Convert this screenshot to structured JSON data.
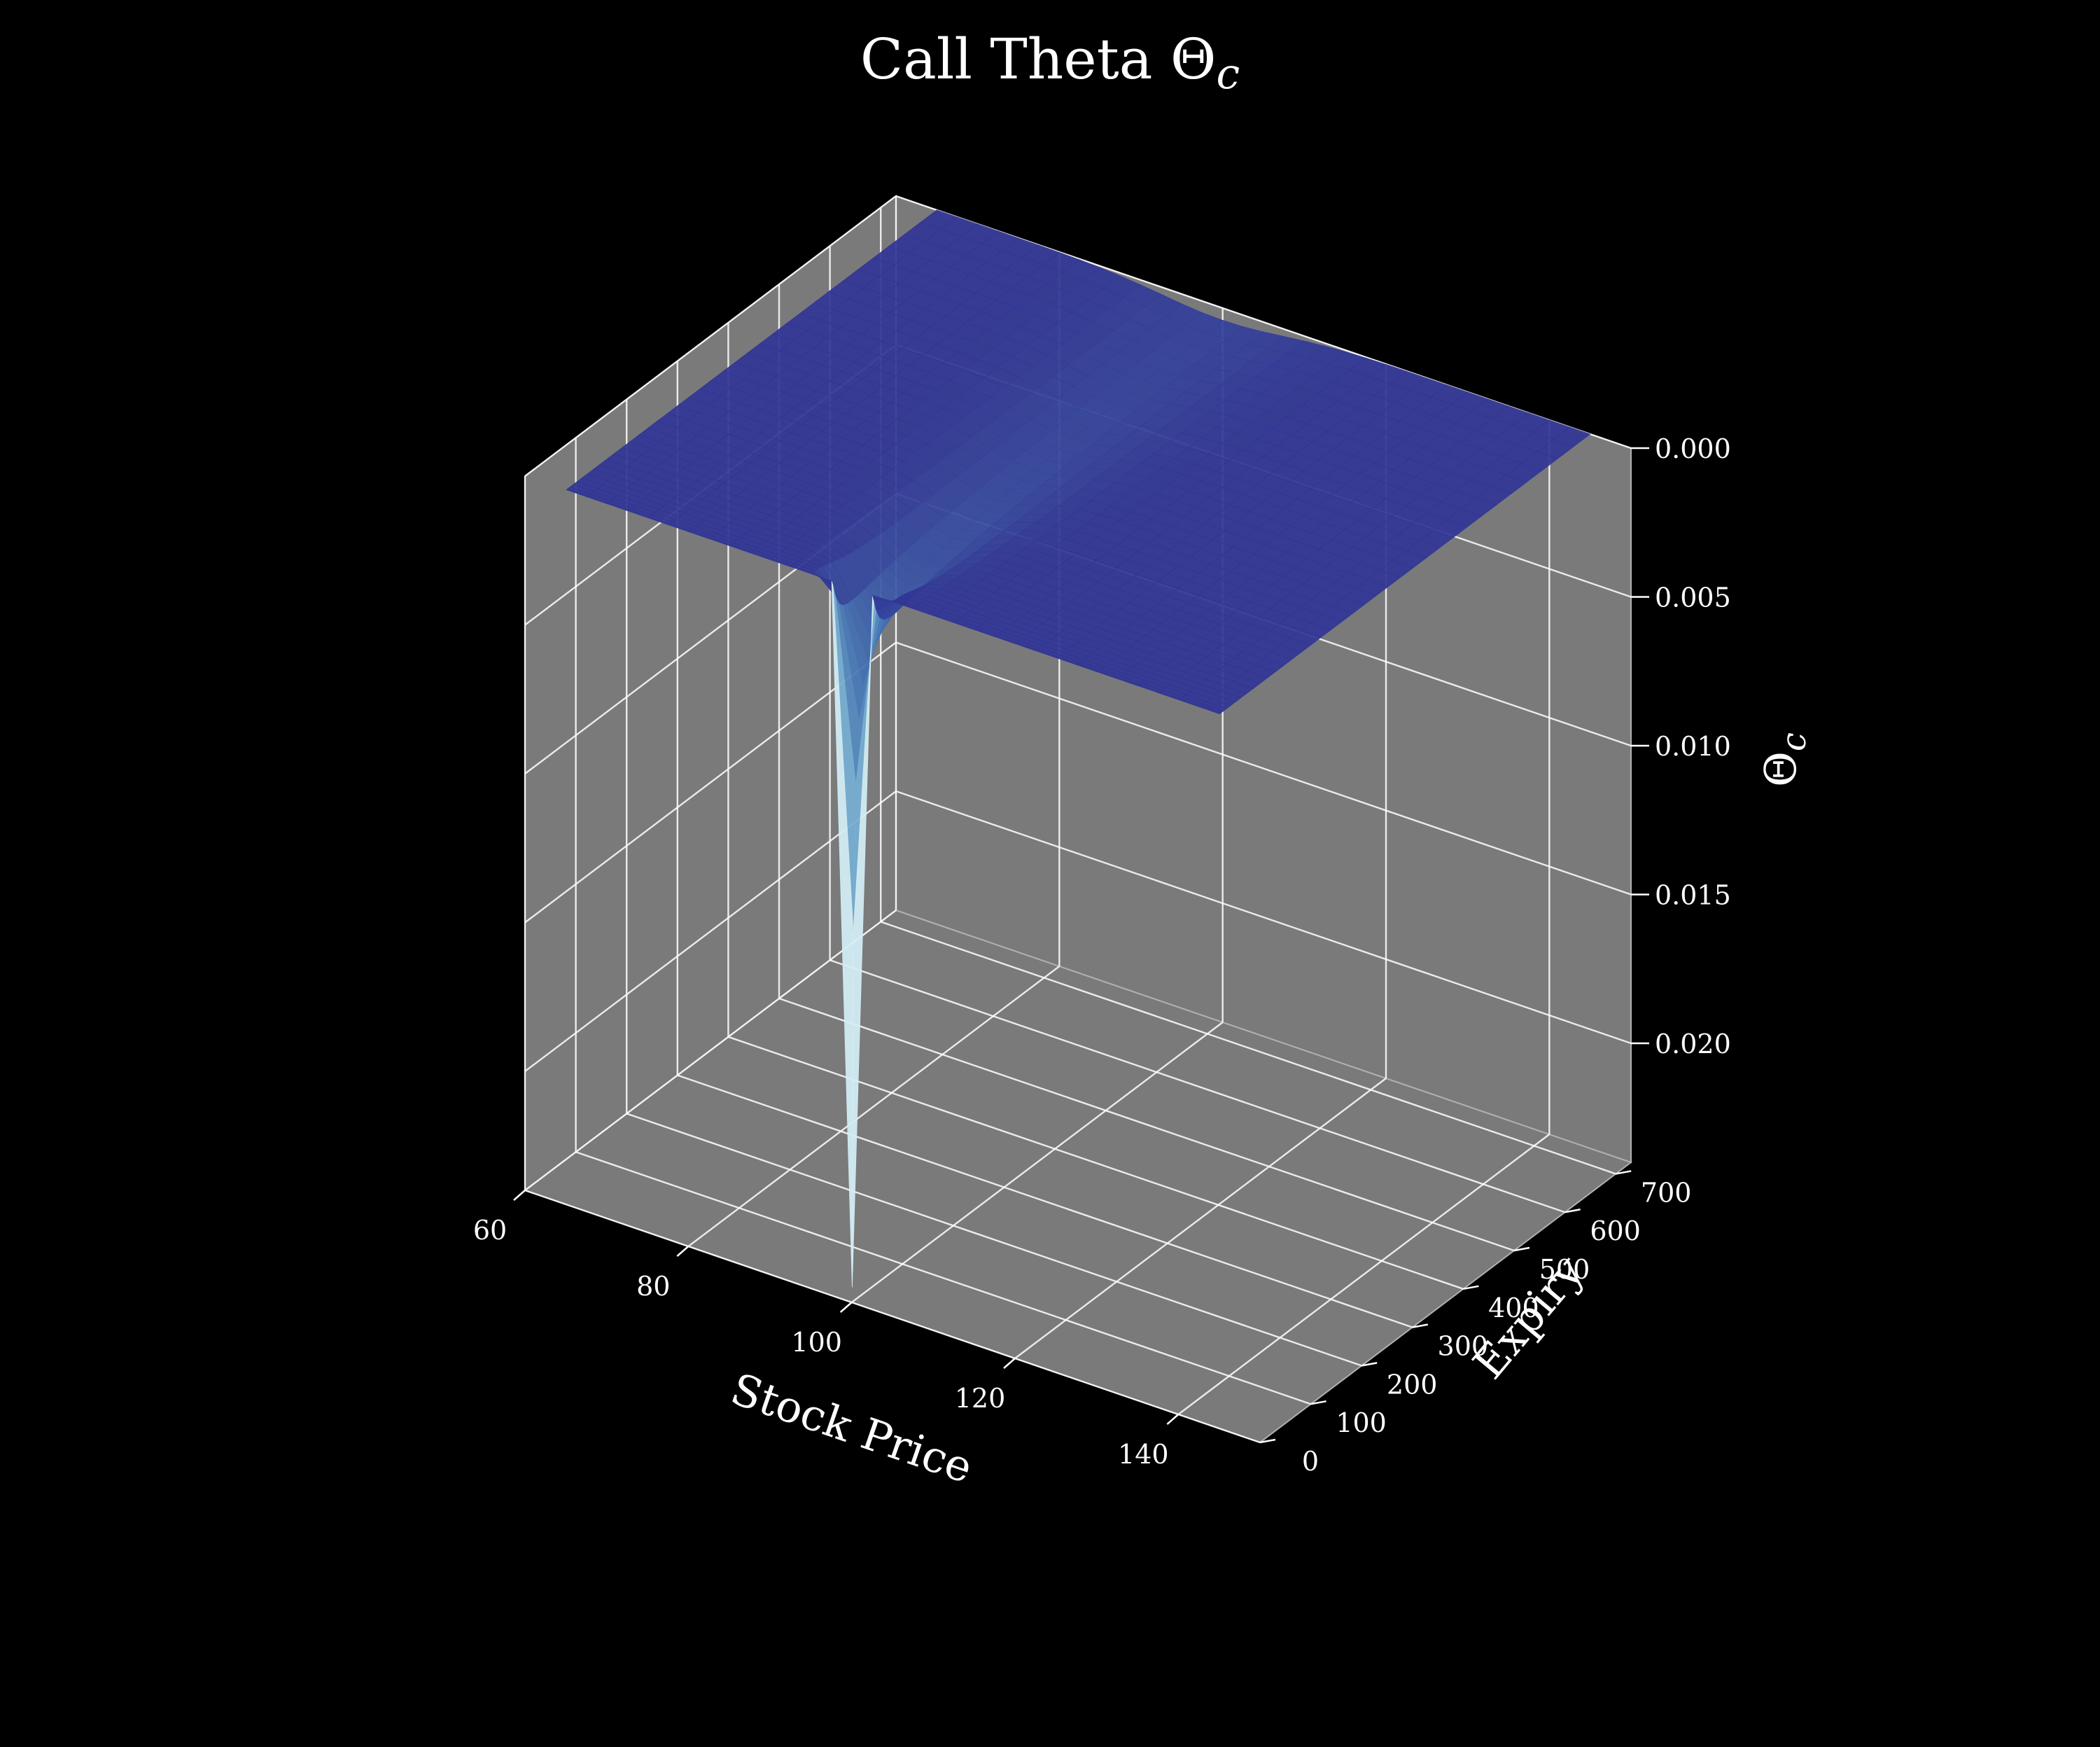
{
  "chart_data": {
    "type": "surface3d",
    "title": "Call Theta Θ",
    "title_subscript": "c",
    "xlabel": "Stock Price",
    "ylabel": "Expiry",
    "zlabel": "Θ",
    "zlabel_subscript": "c",
    "xlim": [
      60,
      150
    ],
    "ylim": [
      0,
      730
    ],
    "zlim": [
      -0.024,
      0.0
    ],
    "x_ticks": [
      "60",
      "80",
      "100",
      "120",
      "140"
    ],
    "x_tick_values": [
      60,
      80,
      100,
      120,
      140
    ],
    "y_ticks": [
      "0",
      "100",
      "200",
      "300",
      "400",
      "500",
      "600",
      "700"
    ],
    "y_tick_values": [
      0,
      100,
      200,
      300,
      400,
      500,
      600,
      700
    ],
    "z_ticks": [
      "0.000",
      "0.005",
      "0.010",
      "0.015",
      "0.020"
    ],
    "z_tick_values": [
      0.0,
      -0.005,
      -0.01,
      -0.015,
      -0.02
    ],
    "surface_x_range": [
      65,
      145
    ],
    "surface_y_range": [
      1,
      730
    ],
    "strike": 100,
    "min_value": -0.0235,
    "colormap": "RdYlBu",
    "grid": true,
    "background": "#000000",
    "pane_color": "#7a7a7a"
  }
}
